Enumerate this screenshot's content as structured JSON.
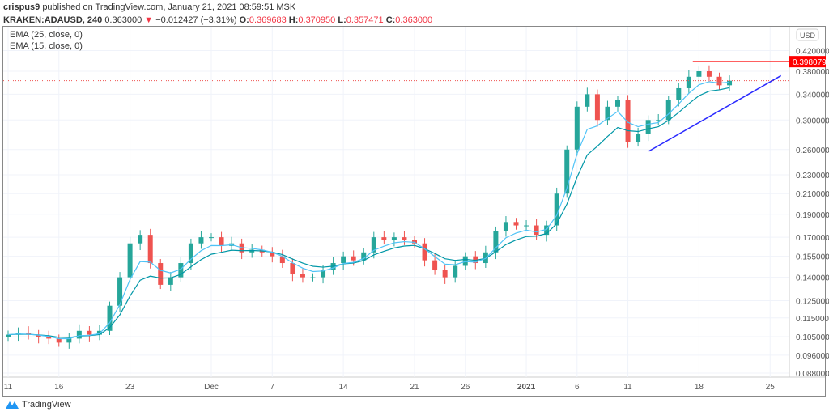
{
  "header": {
    "author": "crispus9",
    "published": "published on TradingView.com, January 21, 2021 08:59:51 MSK",
    "symbol": "KRAKEN:ADAUSD, 240",
    "last": "0.363000",
    "change": "−0.012427 (−3.31%)",
    "o_label": "O:",
    "o": "0.369683",
    "h_label": "H:",
    "h": "0.370950",
    "l_label": "L:",
    "l": "0.357471",
    "c_label": "C:",
    "c": "0.363000"
  },
  "legend": [
    "EMA (25, close, 0)",
    "EMA (15, close, 0)"
  ],
  "currency": "USD",
  "footer": {
    "brand": "TradingView"
  },
  "colors": {
    "up": "#26a69a",
    "down": "#ef5350",
    "ema25": "#0097a7",
    "ema15": "#4fc3f7",
    "resistance": "#ff0000",
    "trend": "#2929ff"
  },
  "chart_data": {
    "type": "candlestick",
    "title": "KRAKEN:ADAUSD, 240",
    "y_scale": "log",
    "y_ticks": [
      "0.420000",
      "0.380000",
      "0.340000",
      "0.300000",
      "0.260000",
      "0.230000",
      "0.210000",
      "0.190000",
      "0.170000",
      "0.155000",
      "0.140000",
      "0.125000",
      "0.115000",
      "0.105000",
      "0.096000",
      "0.088000"
    ],
    "x_ticks": [
      {
        "label": "11",
        "day": 0
      },
      {
        "label": "16",
        "day": 5
      },
      {
        "label": "23",
        "day": 12
      },
      {
        "label": "Dec",
        "day": 20
      },
      {
        "label": "7",
        "day": 26
      },
      {
        "label": "14",
        "day": 33
      },
      {
        "label": "21",
        "day": 40
      },
      {
        "label": "26",
        "day": 45
      },
      {
        "label": "2021",
        "day": 51
      },
      {
        "label": "6",
        "day": 56
      },
      {
        "label": "11",
        "day": 61
      },
      {
        "label": "18",
        "day": 68
      },
      {
        "label": "25",
        "day": 75
      }
    ],
    "start_date": "2020-11-11",
    "daily_close_approx": [
      0.106,
      0.107,
      0.106,
      0.105,
      0.104,
      0.102,
      0.104,
      0.108,
      0.106,
      0.108,
      0.122,
      0.14,
      0.165,
      0.172,
      0.15,
      0.135,
      0.14,
      0.15,
      0.165,
      0.17,
      0.17,
      0.163,
      0.165,
      0.158,
      0.16,
      0.158,
      0.155,
      0.15,
      0.142,
      0.14,
      0.14,
      0.145,
      0.15,
      0.155,
      0.152,
      0.158,
      0.17,
      0.168,
      0.17,
      0.168,
      0.165,
      0.152,
      0.145,
      0.14,
      0.148,
      0.155,
      0.15,
      0.158,
      0.175,
      0.183,
      0.18,
      0.18,
      0.172,
      0.18,
      0.21,
      0.26,
      0.32,
      0.34,
      0.3,
      0.32,
      0.33,
      0.27,
      0.28,
      0.3,
      0.3,
      0.33,
      0.35,
      0.37,
      0.38,
      0.37,
      0.355,
      0.363
    ],
    "resistance": {
      "value": 0.398079,
      "label": "0.398079",
      "from_day": 65
    },
    "trendline": {
      "from": {
        "day": 61,
        "price": 0.258
      },
      "to": {
        "day": 74,
        "price": 0.372
      }
    },
    "current_price": 0.363
  }
}
